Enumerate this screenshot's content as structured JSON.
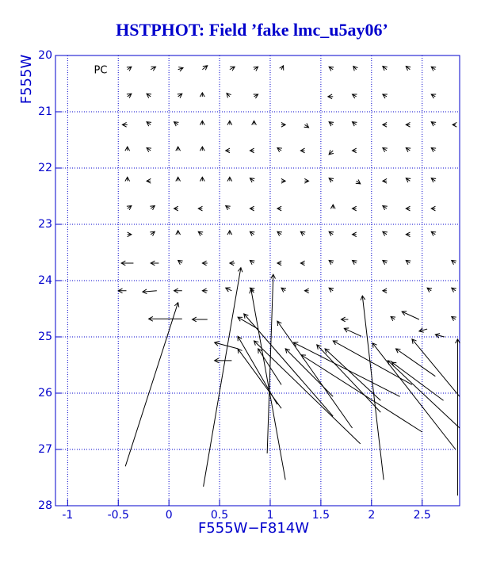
{
  "chart_data": {
    "type": "quiver",
    "title": "HSTPHOT: Field ’fake lmc_u5ay06’",
    "xlabel": "F555W−F814W",
    "ylabel": "F555W",
    "annotation": "PC",
    "xlim": [
      -1.12,
      2.87
    ],
    "ylim": [
      28,
      20
    ],
    "xticks": [
      -1,
      -0.5,
      0,
      0.5,
      1,
      1.5,
      2,
      2.5
    ],
    "yticks": [
      20,
      21,
      22,
      23,
      24,
      25,
      26,
      27,
      28
    ],
    "grid": true,
    "axis_color": "#0000cc",
    "title_color": "#0000cc",
    "color": "#000000",
    "arrows": [
      [
        -0.43,
        27.3,
        0.09,
        24.39
      ],
      [
        0.34,
        27.66,
        0.71,
        23.77
      ],
      [
        0.97,
        27.07,
        1.03,
        23.89
      ],
      [
        1.15,
        27.54,
        0.81,
        24.15
      ],
      [
        2.12,
        27.54,
        1.91,
        24.27
      ],
      [
        2.85,
        27.82,
        2.85,
        25.04
      ],
      [
        0.13,
        24.68,
        -0.2,
        24.68
      ],
      [
        0.38,
        24.69,
        0.23,
        24.69
      ],
      [
        2.87,
        26.06,
        2.4,
        25.04
      ],
      [
        2.87,
        26.62,
        2.16,
        25.42
      ],
      [
        2.83,
        27.0,
        2.01,
        25.11
      ],
      [
        2.71,
        26.13,
        2.2,
        25.45
      ],
      [
        2.63,
        25.7,
        2.24,
        25.21
      ],
      [
        2.5,
        26.69,
        1.306,
        25.32
      ],
      [
        2.4,
        25.85,
        1.62,
        25.07
      ],
      [
        2.28,
        26.06,
        1.23,
        25.1
      ],
      [
        2.09,
        26.34,
        1.46,
        25.14
      ],
      [
        1.89,
        26.9,
        0.84,
        25.07
      ],
      [
        1.81,
        26.62,
        1.07,
        24.72
      ],
      [
        1.62,
        26.41,
        0.74,
        24.59
      ],
      [
        2.09,
        26.13,
        1.54,
        25.21
      ],
      [
        1.62,
        26.06,
        1.15,
        25.21
      ],
      [
        1.11,
        26.27,
        0.68,
        25.21
      ],
      [
        1.11,
        25.85,
        0.88,
        25.21
      ],
      [
        1.07,
        26.2,
        0.68,
        24.99
      ],
      [
        0.68,
        25.21,
        0.45,
        25.1
      ],
      [
        0.62,
        25.42,
        0.45,
        25.42
      ],
      [
        0.88,
        24.86,
        0.68,
        24.65
      ],
      [
        1.9,
        24.99,
        1.73,
        24.85
      ],
      [
        -0.41,
        20.25,
        -0.37,
        20.2
      ],
      [
        -0.18,
        20.25,
        -0.13,
        20.2
      ],
      [
        0.09,
        20.25,
        0.14,
        20.22
      ],
      [
        0.33,
        20.25,
        0.38,
        20.18
      ],
      [
        0.6,
        20.25,
        0.65,
        20.2
      ],
      [
        0.84,
        20.25,
        0.88,
        20.2
      ],
      [
        1.11,
        20.25,
        1.13,
        20.18
      ],
      [
        1.62,
        20.25,
        1.58,
        20.2
      ],
      [
        1.85,
        20.25,
        1.82,
        20.19
      ],
      [
        2.15,
        20.25,
        2.11,
        20.19
      ],
      [
        2.38,
        20.25,
        2.34,
        20.19
      ],
      [
        2.63,
        20.25,
        2.59,
        20.2
      ],
      [
        -0.41,
        20.73,
        -0.37,
        20.68
      ],
      [
        -0.18,
        20.73,
        -0.22,
        20.68
      ],
      [
        0.09,
        20.73,
        0.13,
        20.68
      ],
      [
        0.33,
        20.73,
        0.33,
        20.66
      ],
      [
        0.6,
        20.73,
        0.57,
        20.67
      ],
      [
        0.84,
        20.73,
        0.88,
        20.69
      ],
      [
        1.62,
        20.73,
        1.57,
        20.73
      ],
      [
        1.85,
        20.73,
        1.81,
        20.69
      ],
      [
        2.15,
        20.73,
        2.11,
        20.69
      ],
      [
        2.63,
        20.73,
        2.59,
        20.69
      ],
      [
        -0.41,
        21.23,
        -0.46,
        21.23
      ],
      [
        -0.18,
        21.23,
        -0.22,
        21.18
      ],
      [
        0.09,
        21.23,
        0.05,
        21.18
      ],
      [
        0.33,
        21.23,
        0.33,
        21.16
      ],
      [
        0.6,
        21.23,
        0.6,
        21.16
      ],
      [
        0.84,
        21.23,
        0.84,
        21.16
      ],
      [
        1.11,
        21.23,
        1.15,
        21.23
      ],
      [
        1.34,
        21.23,
        1.38,
        21.28
      ],
      [
        1.62,
        21.23,
        1.58,
        21.18
      ],
      [
        1.85,
        21.23,
        1.81,
        21.18
      ],
      [
        2.15,
        21.23,
        2.11,
        21.23
      ],
      [
        2.38,
        21.23,
        2.34,
        21.23
      ],
      [
        2.63,
        21.23,
        2.59,
        21.18
      ],
      [
        2.83,
        21.23,
        2.8,
        21.23
      ],
      [
        -0.41,
        21.69,
        -0.41,
        21.62
      ],
      [
        -0.18,
        21.69,
        -0.22,
        21.64
      ],
      [
        0.09,
        21.69,
        0.09,
        21.62
      ],
      [
        0.33,
        21.69,
        0.33,
        21.62
      ],
      [
        0.6,
        21.69,
        0.56,
        21.69
      ],
      [
        0.84,
        21.69,
        0.8,
        21.69
      ],
      [
        1.11,
        21.69,
        1.07,
        21.64
      ],
      [
        1.34,
        21.69,
        1.3,
        21.69
      ],
      [
        1.62,
        21.69,
        1.58,
        21.76
      ],
      [
        1.85,
        21.69,
        1.81,
        21.69
      ],
      [
        2.15,
        21.69,
        2.11,
        21.64
      ],
      [
        2.38,
        21.69,
        2.34,
        21.64
      ],
      [
        2.63,
        21.69,
        2.59,
        21.64
      ],
      [
        -0.41,
        22.23,
        -0.41,
        22.16
      ],
      [
        -0.18,
        22.23,
        -0.22,
        22.23
      ],
      [
        0.09,
        22.23,
        0.09,
        22.16
      ],
      [
        0.33,
        22.23,
        0.33,
        22.16
      ],
      [
        0.6,
        22.23,
        0.6,
        22.16
      ],
      [
        0.84,
        22.23,
        0.8,
        22.18
      ],
      [
        1.11,
        22.23,
        1.15,
        22.23
      ],
      [
        1.34,
        22.23,
        1.38,
        22.23
      ],
      [
        1.62,
        22.23,
        1.58,
        22.18
      ],
      [
        1.85,
        22.23,
        1.89,
        22.28
      ],
      [
        2.15,
        22.23,
        2.11,
        22.23
      ],
      [
        2.38,
        22.23,
        2.34,
        22.18
      ],
      [
        2.63,
        22.23,
        2.59,
        22.18
      ],
      [
        -0.41,
        22.72,
        -0.37,
        22.67
      ],
      [
        -0.18,
        22.72,
        -0.14,
        22.67
      ],
      [
        0.09,
        22.72,
        0.05,
        22.72
      ],
      [
        0.33,
        22.72,
        0.29,
        22.72
      ],
      [
        0.6,
        22.72,
        0.56,
        22.67
      ],
      [
        0.84,
        22.72,
        0.8,
        22.72
      ],
      [
        1.11,
        22.72,
        1.07,
        22.72
      ],
      [
        1.62,
        22.72,
        1.62,
        22.65
      ],
      [
        1.85,
        22.72,
        1.81,
        22.72
      ],
      [
        2.15,
        22.72,
        2.11,
        22.67
      ],
      [
        2.38,
        22.72,
        2.34,
        22.72
      ],
      [
        2.63,
        22.72,
        2.59,
        22.72
      ],
      [
        -0.41,
        23.18,
        -0.37,
        23.18
      ],
      [
        -0.18,
        23.18,
        -0.14,
        23.13
      ],
      [
        0.09,
        23.18,
        0.09,
        23.11
      ],
      [
        0.33,
        23.18,
        0.29,
        23.13
      ],
      [
        0.6,
        23.18,
        0.6,
        23.11
      ],
      [
        0.84,
        23.18,
        0.8,
        23.13
      ],
      [
        1.11,
        23.18,
        1.07,
        23.13
      ],
      [
        1.34,
        23.18,
        1.3,
        23.13
      ],
      [
        1.62,
        23.18,
        1.58,
        23.13
      ],
      [
        1.85,
        23.18,
        1.81,
        23.18
      ],
      [
        2.15,
        23.18,
        2.11,
        23.13
      ],
      [
        2.38,
        23.18,
        2.34,
        23.18
      ],
      [
        2.63,
        23.18,
        2.59,
        23.13
      ],
      [
        -0.35,
        23.69,
        -0.47,
        23.69
      ],
      [
        -0.1,
        23.69,
        -0.18,
        23.69
      ],
      [
        0.13,
        23.69,
        0.09,
        23.64
      ],
      [
        0.38,
        23.69,
        0.33,
        23.69
      ],
      [
        0.65,
        23.69,
        0.6,
        23.69
      ],
      [
        0.84,
        23.69,
        0.8,
        23.64
      ],
      [
        1.11,
        23.69,
        1.07,
        23.69
      ],
      [
        1.34,
        23.69,
        1.3,
        23.69
      ],
      [
        1.62,
        23.69,
        1.58,
        23.64
      ],
      [
        1.85,
        23.69,
        1.81,
        23.64
      ],
      [
        2.15,
        23.69,
        2.11,
        23.64
      ],
      [
        2.38,
        23.69,
        2.34,
        23.64
      ],
      [
        2.83,
        23.69,
        2.79,
        23.64
      ],
      [
        -0.42,
        24.18,
        -0.5,
        24.18
      ],
      [
        -0.12,
        24.18,
        -0.26,
        24.2
      ],
      [
        0.13,
        24.18,
        0.05,
        24.18
      ],
      [
        0.38,
        24.18,
        0.33,
        24.18
      ],
      [
        0.62,
        24.18,
        0.56,
        24.13
      ],
      [
        0.84,
        24.18,
        0.8,
        24.13
      ],
      [
        1.15,
        24.18,
        1.11,
        24.13
      ],
      [
        1.38,
        24.18,
        1.34,
        24.18
      ],
      [
        1.62,
        24.18,
        1.58,
        24.13
      ],
      [
        2.15,
        24.18,
        2.11,
        24.18
      ],
      [
        2.59,
        24.18,
        2.55,
        24.13
      ],
      [
        2.83,
        24.18,
        2.79,
        24.13
      ],
      [
        1.77,
        24.69,
        1.7,
        24.69
      ],
      [
        2.23,
        24.69,
        2.19,
        24.64
      ],
      [
        2.47,
        24.69,
        2.3,
        24.55
      ],
      [
        2.83,
        24.69,
        2.79,
        24.64
      ],
      [
        2.55,
        24.86,
        2.47,
        24.9
      ],
      [
        2.72,
        25.0,
        2.63,
        24.96
      ]
    ]
  }
}
